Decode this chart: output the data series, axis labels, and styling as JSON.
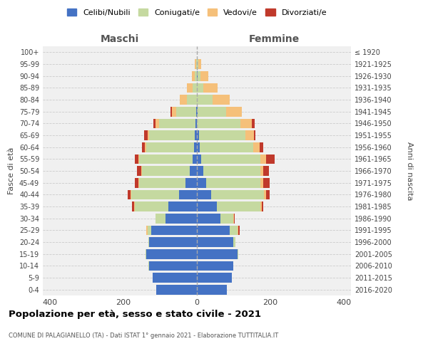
{
  "age_groups": [
    "0-4",
    "5-9",
    "10-14",
    "15-19",
    "20-24",
    "25-29",
    "30-34",
    "35-39",
    "40-44",
    "45-49",
    "50-54",
    "55-59",
    "60-64",
    "65-69",
    "70-74",
    "75-79",
    "80-84",
    "85-89",
    "90-94",
    "95-99",
    "100+"
  ],
  "birth_years": [
    "2016-2020",
    "2011-2015",
    "2006-2010",
    "2001-2005",
    "1996-2000",
    "1991-1995",
    "1986-1990",
    "1981-1985",
    "1976-1980",
    "1971-1975",
    "1966-1970",
    "1961-1965",
    "1956-1960",
    "1951-1955",
    "1946-1950",
    "1941-1945",
    "1936-1940",
    "1931-1935",
    "1926-1930",
    "1921-1925",
    "≤ 1920"
  ],
  "maschi": {
    "celibi": [
      110,
      120,
      130,
      138,
      130,
      125,
      85,
      78,
      48,
      32,
      20,
      12,
      8,
      5,
      3,
      2,
      0,
      0,
      0,
      0,
      0
    ],
    "coniugati": [
      0,
      0,
      2,
      2,
      3,
      10,
      28,
      92,
      130,
      125,
      130,
      145,
      130,
      125,
      100,
      55,
      28,
      12,
      5,
      2,
      0
    ],
    "vedovi": [
      0,
      0,
      0,
      0,
      0,
      3,
      0,
      2,
      2,
      2,
      2,
      2,
      3,
      5,
      10,
      12,
      18,
      15,
      8,
      3,
      0
    ],
    "divorziati": [
      0,
      0,
      0,
      0,
      0,
      0,
      0,
      5,
      8,
      10,
      12,
      10,
      8,
      8,
      5,
      2,
      0,
      0,
      0,
      0,
      0
    ]
  },
  "femmine": {
    "nubili": [
      82,
      95,
      100,
      110,
      100,
      90,
      65,
      55,
      38,
      25,
      18,
      12,
      8,
      5,
      0,
      2,
      0,
      0,
      2,
      0,
      0
    ],
    "coniugate": [
      0,
      0,
      0,
      2,
      5,
      20,
      35,
      118,
      145,
      148,
      155,
      162,
      145,
      128,
      118,
      78,
      42,
      18,
      8,
      3,
      0
    ],
    "vedove": [
      0,
      0,
      0,
      0,
      0,
      3,
      2,
      3,
      5,
      8,
      8,
      15,
      18,
      22,
      32,
      42,
      48,
      38,
      22,
      8,
      0
    ],
    "divorziate": [
      0,
      0,
      0,
      0,
      0,
      3,
      2,
      5,
      10,
      18,
      15,
      22,
      10,
      5,
      8,
      0,
      0,
      0,
      0,
      0,
      0
    ]
  },
  "colors": {
    "celibi": "#4472c4",
    "coniugati": "#c5d9a0",
    "vedovi": "#f5c07a",
    "divorziati": "#c0392b"
  },
  "xlim": 420,
  "title": "Popolazione per età, sesso e stato civile - 2021",
  "subtitle": "COMUNE DI PALAGIANELLO (TA) - Dati ISTAT 1° gennaio 2021 - Elaborazione TUTTITALIA.IT",
  "xlabel_maschi": "Maschi",
  "xlabel_femmine": "Femmine",
  "ylabel_left": "Fasce di età",
  "ylabel_right": "Anni di nascita",
  "legend_labels": [
    "Celibi/Nubili",
    "Coniugati/e",
    "Vedovi/e",
    "Divorziati/e"
  ]
}
